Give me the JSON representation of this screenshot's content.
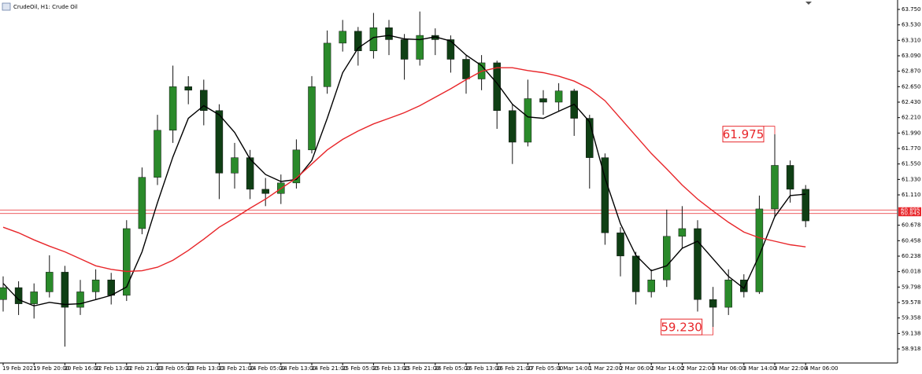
{
  "chart_data": {
    "type": "candlestick",
    "title": "CrudeOil, H1: Crude Oil",
    "categories": [
      "19 Feb 2021",
      null,
      "19 Feb 20:00",
      null,
      "20 Feb 16:00",
      null,
      "22 Feb 13:00",
      null,
      "22 Feb 21:00",
      null,
      "23 Feb 05:00",
      null,
      "23 Feb 13:00",
      null,
      "23 Feb 21:00",
      null,
      "24 Feb 05:00",
      null,
      "24 Feb 13:00",
      null,
      "24 Feb 21:00",
      null,
      "25 Feb 05:00",
      null,
      "25 Feb 13:00",
      null,
      "25 Feb 21:00",
      null,
      "26 Feb 05:00",
      null,
      "26 Feb 13:00",
      null,
      "26 Feb 21:00",
      null,
      "27 Feb 05:00",
      null,
      "1 Mar 14:00",
      null,
      "1 Mar 22:00",
      null,
      "2 Mar 06:00",
      null,
      "2 Mar 14:00",
      null,
      "2 Mar 22:00",
      null,
      "3 Mar 06:00",
      null,
      "3 Mar 14:00",
      null,
      "3 Mar 22:00",
      null,
      "4 Mar 06:00"
    ],
    "open": [
      59.62,
      59.79,
      59.56,
      59.73,
      60.01,
      59.51,
      59.73,
      59.9,
      59.68,
      60.63,
      61.36,
      62.03,
      62.65,
      62.6,
      62.31,
      61.42,
      61.64,
      61.19,
      61.13,
      61.28,
      61.75,
      62.65,
      63.27,
      63.44,
      63.16,
      63.49,
      63.32,
      63.04,
      63.38,
      63.32,
      63.04,
      62.76,
      62.99,
      62.31,
      61.86,
      62.48,
      62.43,
      62.59,
      62.2,
      61.64,
      60.57,
      60.24,
      59.73,
      59.9,
      60.52,
      60.63,
      59.62,
      59.51,
      59.9,
      59.73,
      60.91,
      61.53,
      61.19
    ],
    "high": [
      59.95,
      59.88,
      59.85,
      60.25,
      60.1,
      59.9,
      60.05,
      60.0,
      60.75,
      61.5,
      62.25,
      62.95,
      62.8,
      62.75,
      62.4,
      61.85,
      61.75,
      61.35,
      61.4,
      61.9,
      62.8,
      63.45,
      63.6,
      63.5,
      63.7,
      63.6,
      63.4,
      63.72,
      63.48,
      63.38,
      63.1,
      63.1,
      63.02,
      62.4,
      62.75,
      62.6,
      62.7,
      62.62,
      62.25,
      61.7,
      60.65,
      60.3,
      60.05,
      60.9,
      60.95,
      60.75,
      59.8,
      60.05,
      59.98,
      61.1,
      61.975,
      61.6,
      61.25
    ],
    "low": [
      59.45,
      59.4,
      59.35,
      59.65,
      58.95,
      59.4,
      59.62,
      59.55,
      59.6,
      60.55,
      61.25,
      61.85,
      62.4,
      62.1,
      61.05,
      61.2,
      61.05,
      60.95,
      60.98,
      61.2,
      61.7,
      62.55,
      63.15,
      62.95,
      63.05,
      63.1,
      62.75,
      62.95,
      63.1,
      62.85,
      62.55,
      62.6,
      62.05,
      61.55,
      61.8,
      62.25,
      62.3,
      61.95,
      61.2,
      60.4,
      59.95,
      59.55,
      59.65,
      59.8,
      60.35,
      59.45,
      59.23,
      59.4,
      59.65,
      59.7,
      60.8,
      61.0,
      60.65
    ],
    "close": [
      59.79,
      59.56,
      59.73,
      60.01,
      59.51,
      59.73,
      59.9,
      59.68,
      60.63,
      61.36,
      62.03,
      62.65,
      62.6,
      62.31,
      61.42,
      61.64,
      61.19,
      61.13,
      61.28,
      61.75,
      62.65,
      63.27,
      63.44,
      63.16,
      63.49,
      63.32,
      63.04,
      63.38,
      63.32,
      63.04,
      62.76,
      62.99,
      62.31,
      61.86,
      62.48,
      62.43,
      62.59,
      62.2,
      61.64,
      60.57,
      60.24,
      59.73,
      59.9,
      60.52,
      60.63,
      59.62,
      59.51,
      59.9,
      59.73,
      60.91,
      61.53,
      61.19,
      60.74
    ],
    "up_color": "#2a8a2a",
    "down_color": "#0f3f14",
    "moving_averages": [
      {
        "color": "#000000",
        "values": [
          59.85,
          59.62,
          59.53,
          59.58,
          59.55,
          59.56,
          59.62,
          59.68,
          59.8,
          60.3,
          61.0,
          61.65,
          62.2,
          62.38,
          62.25,
          62.0,
          61.62,
          61.4,
          61.3,
          61.33,
          61.6,
          62.2,
          62.85,
          63.2,
          63.35,
          63.38,
          63.33,
          63.32,
          63.36,
          63.3,
          63.1,
          62.95,
          62.7,
          62.4,
          62.22,
          62.2,
          62.3,
          62.4,
          62.15,
          61.35,
          60.7,
          60.25,
          60.03,
          60.1,
          60.35,
          60.45,
          60.2,
          59.95,
          59.78,
          60.25,
          60.8,
          61.1,
          61.12
        ]
      },
      {
        "color": "#e8262a",
        "values": [
          60.65,
          60.57,
          60.47,
          60.38,
          60.3,
          60.2,
          60.1,
          60.05,
          60.02,
          60.03,
          60.08,
          60.18,
          60.32,
          60.48,
          60.65,
          60.78,
          60.92,
          61.05,
          61.2,
          61.35,
          61.55,
          61.75,
          61.9,
          62.02,
          62.12,
          62.2,
          62.28,
          62.38,
          62.5,
          62.62,
          62.75,
          62.87,
          62.92,
          62.92,
          62.88,
          62.85,
          62.8,
          62.73,
          62.62,
          62.45,
          62.2,
          61.95,
          61.7,
          61.48,
          61.25,
          61.05,
          60.88,
          60.72,
          60.58,
          60.5,
          60.45,
          60.4,
          60.37
        ]
      }
    ],
    "levels": [
      60.895,
      60.845
    ],
    "level_color": "#e8262a",
    "annotations": [
      61.975,
      {
        "value": 59.23,
        "label": "59.230"
      }
    ],
    "ylim": [
      58.717,
      63.884
    ],
    "yticks": [
      {
        "value": 63.75,
        "label": "63.750"
      },
      {
        "value": 63.53,
        "label": "63.530"
      },
      {
        "value": 63.31,
        "label": "63.310"
      },
      {
        "value": 63.09,
        "label": "63.090"
      },
      {
        "value": 62.87,
        "label": "62.870"
      },
      {
        "value": 62.65,
        "label": "62.650"
      },
      {
        "value": 62.43,
        "label": "62.430"
      },
      {
        "value": 62.21,
        "label": "62.210"
      },
      {
        "value": 61.99,
        "label": "61.990"
      },
      {
        "value": 61.77,
        "label": "61.770"
      },
      {
        "value": 61.55,
        "label": "61.550"
      },
      {
        "value": 61.33,
        "label": "61.330"
      },
      {
        "value": 61.11,
        "label": "61.110"
      },
      60.678,
      60.458,
      60.238,
      60.018,
      59.798,
      59.578,
      59.358,
      59.138,
      58.918
    ]
  }
}
